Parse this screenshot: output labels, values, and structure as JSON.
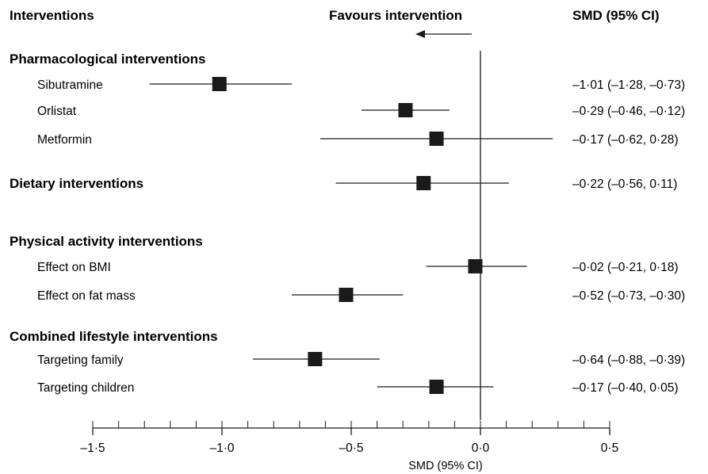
{
  "header": {
    "interventions": "Interventions",
    "favours": "Favours intervention",
    "smd": "SMD (95% CI)"
  },
  "colors": {
    "ink": "#1a1a1a",
    "marker": "#1a1a1a"
  },
  "chart_data": {
    "type": "forest",
    "xlabel": "SMD (95% CI)",
    "xlim": [
      -1.5,
      0.5
    ],
    "null_line": 0,
    "xticks": [
      -1.5,
      -1.0,
      -0.5,
      0.0,
      0.5
    ],
    "xtick_labels": [
      "–1·5",
      "–1·0",
      "–0·5",
      "0·0",
      "0·5"
    ],
    "rows": [
      {
        "kind": "group",
        "label": "Pharmacological interventions"
      },
      {
        "kind": "study",
        "label": "Sibutramine",
        "est": -1.01,
        "lo": -1.28,
        "hi": -0.73,
        "ci_text": "–1·01 (–1·28, –0·73)"
      },
      {
        "kind": "study",
        "label": "Orlistat",
        "est": -0.29,
        "lo": -0.46,
        "hi": -0.12,
        "ci_text": "–0·29 (–0·46, –0·12)"
      },
      {
        "kind": "study",
        "label": "Metformin",
        "est": -0.17,
        "lo": -0.62,
        "hi": 0.28,
        "ci_text": "–0·17 (–0·62, 0·28)"
      },
      {
        "kind": "groupstudy",
        "label": "Dietary interventions",
        "est": -0.22,
        "lo": -0.56,
        "hi": 0.11,
        "ci_text": "–0·22 (–0·56, 0·11)"
      },
      {
        "kind": "group",
        "label": "Physical activity interventions"
      },
      {
        "kind": "study",
        "label": "Effect on BMI",
        "est": -0.02,
        "lo": -0.21,
        "hi": 0.18,
        "ci_text": "–0·02 (–0·21, 0·18)"
      },
      {
        "kind": "study",
        "label": "Effect on fat mass",
        "est": -0.52,
        "lo": -0.73,
        "hi": -0.3,
        "ci_text": "–0·52 (–0·73, –0·30)"
      },
      {
        "kind": "group",
        "label": "Combined lifestyle interventions"
      },
      {
        "kind": "study",
        "label": "Targeting family",
        "est": -0.64,
        "lo": -0.88,
        "hi": -0.39,
        "ci_text": "–0·64 (–0·88, –0·39)"
      },
      {
        "kind": "study",
        "label": "Targeting children",
        "est": -0.17,
        "lo": -0.4,
        "hi": 0.05,
        "ci_text": "–0·17 (–0·40, 0·05)"
      }
    ]
  }
}
